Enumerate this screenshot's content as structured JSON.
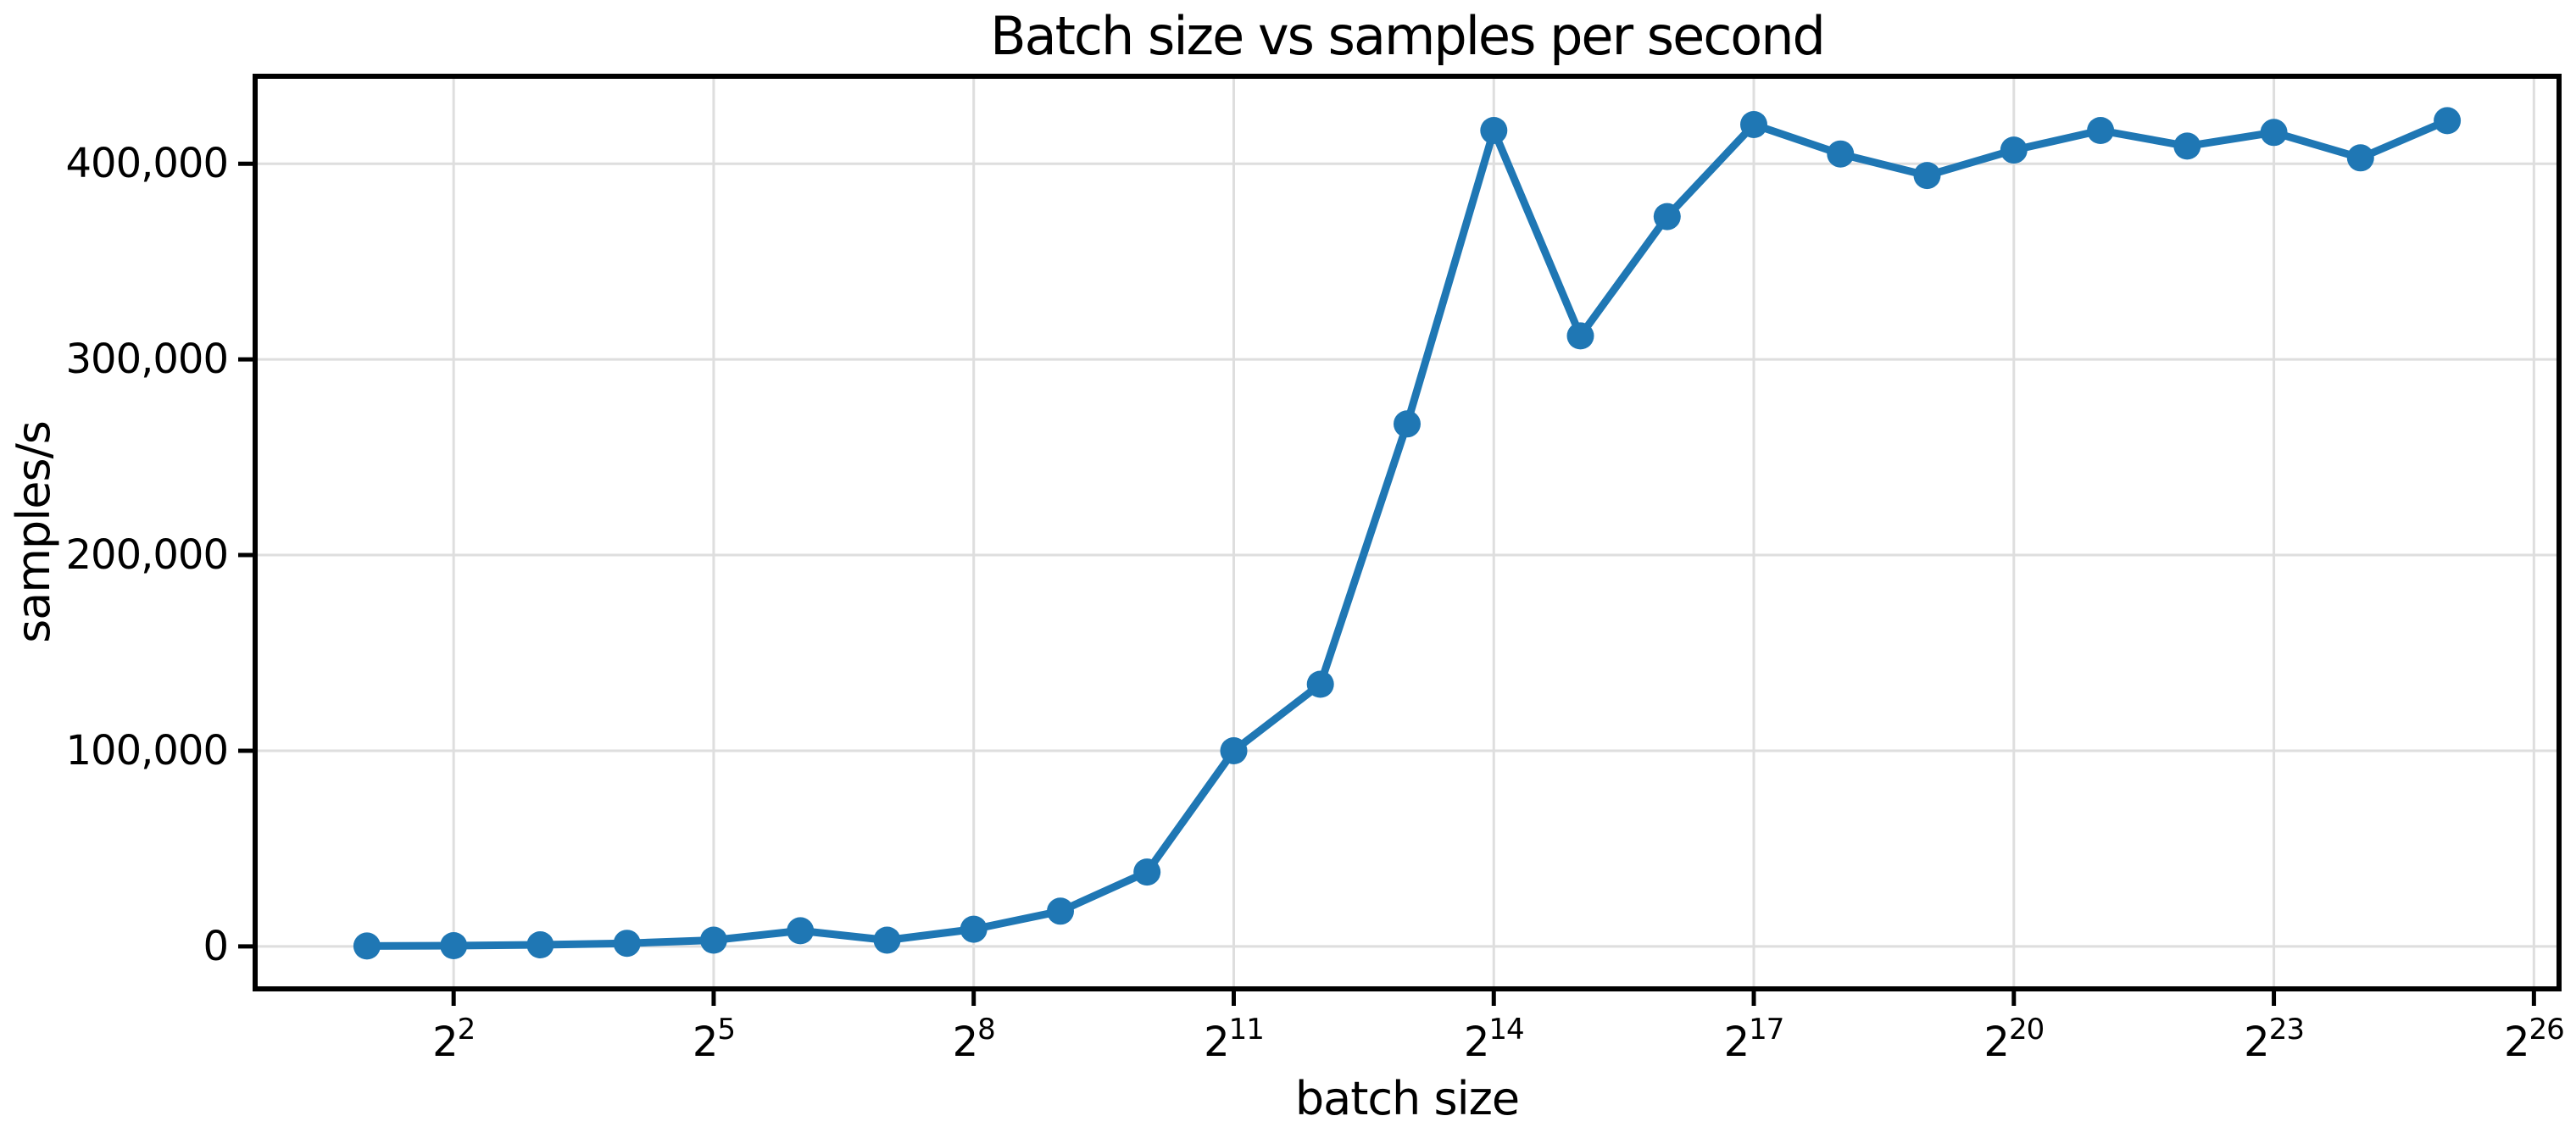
{
  "chart_data": {
    "type": "line",
    "title": "Batch size vs samples per second",
    "xlabel": "batch size",
    "ylabel": "samples/s",
    "x_axis_scale": "log2",
    "grid": true,
    "legend": "none",
    "series": [
      {
        "name": "samples per second",
        "batch_exponents": [
          1,
          2,
          3,
          4,
          5,
          6,
          7,
          8,
          9,
          10,
          11,
          12,
          13,
          14,
          15,
          16,
          17,
          18,
          19,
          20,
          21,
          22,
          23,
          24,
          25
        ],
        "batch_sizes": [
          2,
          4,
          8,
          16,
          32,
          64,
          128,
          256,
          512,
          1024,
          2048,
          4096,
          8192,
          16384,
          32768,
          65536,
          131072,
          262144,
          524288,
          1048576,
          2097152,
          4194304,
          8388608,
          16777216,
          33554432
        ],
        "samples_per_second": [
          200,
          400,
          800,
          1600,
          3200,
          8000,
          3200,
          8800,
          18000,
          38000,
          100000,
          134000,
          267000,
          417000,
          312000,
          373000,
          420000,
          405000,
          394000,
          407000,
          417000,
          409000,
          416000,
          403000,
          422000
        ]
      }
    ],
    "x_ticks": [
      {
        "exp": 2,
        "base": "2",
        "sup": "2"
      },
      {
        "exp": 5,
        "base": "2",
        "sup": "5"
      },
      {
        "exp": 8,
        "base": "2",
        "sup": "8"
      },
      {
        "exp": 11,
        "base": "2",
        "sup": "11"
      },
      {
        "exp": 14,
        "base": "2",
        "sup": "14"
      },
      {
        "exp": 17,
        "base": "2",
        "sup": "17"
      },
      {
        "exp": 20,
        "base": "2",
        "sup": "20"
      },
      {
        "exp": 23,
        "base": "2",
        "sup": "23"
      },
      {
        "exp": 26,
        "base": "2",
        "sup": "26"
      }
    ],
    "y_ticks": [
      {
        "value": 0,
        "label": "0"
      },
      {
        "value": 100000,
        "label": "100,000"
      },
      {
        "value": 200000,
        "label": "200,000"
      },
      {
        "value": 300000,
        "label": "300,000"
      },
      {
        "value": 400000,
        "label": "400,000"
      }
    ],
    "xlim_exponents": [
      -0.29,
      26.29
    ],
    "ylim": [
      -21700,
      444700
    ],
    "colors": {
      "line": "#1f77b4",
      "marker": "#1f77b4",
      "grid": "#dedede",
      "spine": "#000000",
      "text": "#000000",
      "background": "#ffffff"
    }
  }
}
